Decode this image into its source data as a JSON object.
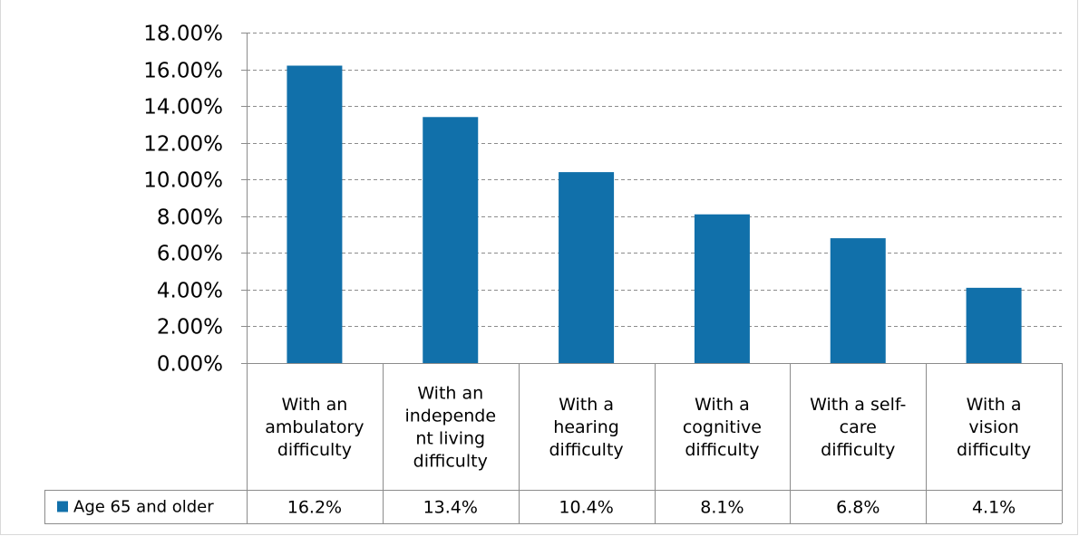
{
  "chart_data": {
    "type": "bar",
    "categories": [
      [
        "With an",
        "ambulatory",
        "difficulty"
      ],
      [
        "With an",
        "independe",
        "nt living",
        "difficulty"
      ],
      [
        "With a",
        "hearing",
        "difficulty"
      ],
      [
        "With a",
        "cognitive",
        "difficulty"
      ],
      [
        "With a self-",
        "care",
        "difficulty"
      ],
      [
        "With a",
        "vision",
        "difficulty"
      ]
    ],
    "series": [
      {
        "name": "Age 65 and older",
        "values": [
          16.2,
          13.4,
          10.4,
          8.1,
          6.8,
          4.1
        ],
        "labels": [
          "16.2%",
          "13.4%",
          "10.4%",
          "8.1%",
          "6.8%",
          "4.1%"
        ],
        "color": "#1170aa"
      }
    ],
    "yticks": [
      "0.00%",
      "2.00%",
      "4.00%",
      "6.00%",
      "8.00%",
      "10.00%",
      "12.00%",
      "14.00%",
      "16.00%",
      "18.00%"
    ],
    "ylim": [
      0,
      18
    ],
    "grid": true,
    "grid_style": "dashed",
    "legend_position": "data-table-left",
    "title": "",
    "xlabel": "",
    "ylabel": ""
  }
}
